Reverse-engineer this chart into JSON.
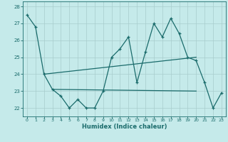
{
  "background_color": "#c5eaea",
  "grid_color": "#a8cccc",
  "line_color": "#1a6b6b",
  "xlabel": "Humidex (Indice chaleur)",
  "xlim": [
    -0.5,
    23.5
  ],
  "ylim": [
    21.5,
    28.3
  ],
  "yticks": [
    22,
    23,
    24,
    25,
    26,
    27,
    28
  ],
  "xticks": [
    0,
    1,
    2,
    3,
    4,
    5,
    6,
    7,
    8,
    9,
    10,
    11,
    12,
    13,
    14,
    15,
    16,
    17,
    18,
    19,
    20,
    21,
    22,
    23
  ],
  "main_y": [
    27.5,
    26.8,
    24.0,
    23.1,
    22.7,
    22.0,
    22.5,
    22.0,
    22.0,
    23.0,
    25.0,
    25.5,
    26.2,
    23.5,
    25.3,
    27.0,
    26.2,
    27.3,
    26.4,
    25.0,
    24.8,
    23.5,
    22.0,
    22.9
  ],
  "flat_line_y_start": 23.1,
  "flat_line_x_start": 3,
  "flat_line_x_end": 20,
  "flat_line_y_end": 23.0,
  "diag_line": [
    [
      2,
      24.0
    ],
    [
      20,
      25.0
    ]
  ]
}
